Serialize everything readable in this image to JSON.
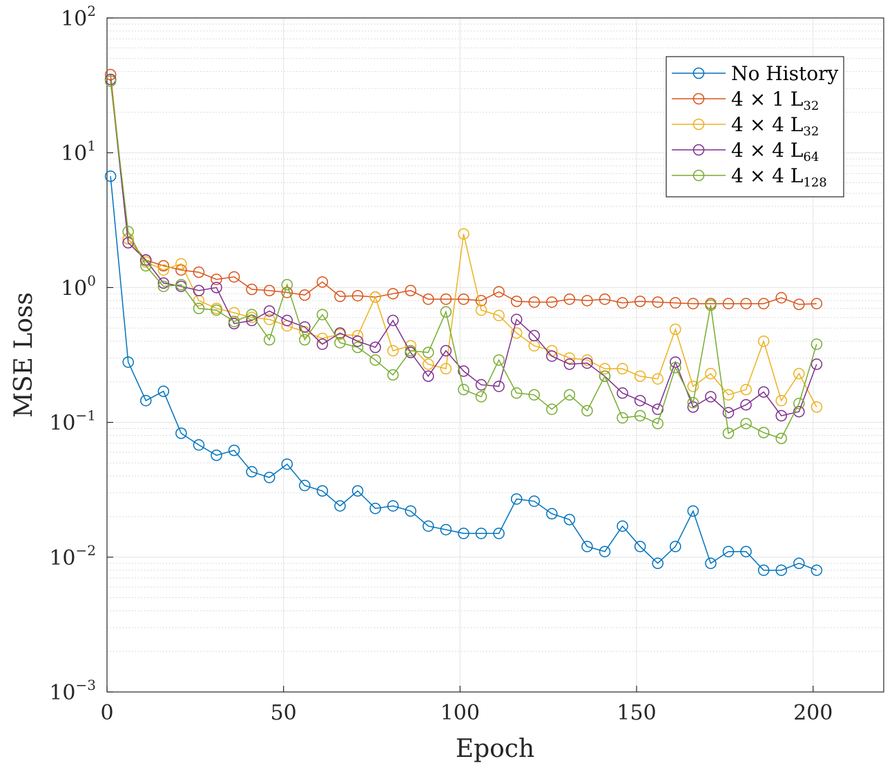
{
  "chart_data": {
    "type": "line",
    "xlabel": "Epoch",
    "ylabel": "MSE Loss",
    "yscale": "log",
    "xlim": [
      0,
      220
    ],
    "ylim": [
      0.001,
      100
    ],
    "grid": true,
    "legend_position": "top-right",
    "x_ticks": [
      0,
      50,
      100,
      150,
      200
    ],
    "y_ticks": [
      {
        "value": 0.001,
        "base": "10",
        "exp": "−3"
      },
      {
        "value": 0.01,
        "base": "10",
        "exp": "−2"
      },
      {
        "value": 0.1,
        "base": "10",
        "exp": "−1"
      },
      {
        "value": 1,
        "base": "10",
        "exp": "0"
      },
      {
        "value": 10,
        "base": "10",
        "exp": "1"
      },
      {
        "value": 100,
        "base": "10",
        "exp": "2"
      }
    ],
    "x": [
      1,
      6,
      11,
      16,
      21,
      26,
      31,
      36,
      41,
      46,
      51,
      56,
      61,
      66,
      71,
      76,
      81,
      86,
      91,
      96,
      101,
      106,
      111,
      116,
      121,
      126,
      131,
      136,
      141,
      146,
      151,
      156,
      161,
      166,
      171,
      176,
      181,
      186,
      191,
      196,
      201
    ],
    "series": [
      {
        "name": "No History",
        "legend_main": "No History",
        "legend_sub": "",
        "color": "#0072BD",
        "values": [
          6.7,
          0.28,
          0.145,
          0.17,
          0.083,
          0.068,
          0.057,
          0.062,
          0.043,
          0.039,
          0.049,
          0.034,
          0.031,
          0.024,
          0.031,
          0.023,
          0.024,
          0.022,
          0.017,
          0.016,
          0.015,
          0.015,
          0.015,
          0.027,
          0.026,
          0.021,
          0.019,
          0.012,
          0.011,
          0.017,
          0.012,
          0.009,
          0.012,
          0.022,
          0.009,
          0.011,
          0.011,
          0.008,
          0.008,
          0.009,
          0.008
        ]
      },
      {
        "name": "4 × 1 L32",
        "legend_main": "4 × 1 L",
        "legend_sub": "32",
        "color": "#D95319",
        "values": [
          38,
          2.3,
          1.6,
          1.45,
          1.35,
          1.3,
          1.15,
          1.2,
          0.97,
          0.95,
          0.92,
          0.88,
          1.1,
          0.86,
          0.87,
          0.85,
          0.9,
          0.95,
          0.82,
          0.82,
          0.82,
          0.8,
          0.93,
          0.79,
          0.78,
          0.78,
          0.82,
          0.8,
          0.82,
          0.77,
          0.79,
          0.78,
          0.77,
          0.76,
          0.76,
          0.76,
          0.76,
          0.76,
          0.84,
          0.75,
          0.76
        ]
      },
      {
        "name": "4 × 4 L32",
        "legend_main": "4 × 4 L",
        "legend_sub": "32",
        "color": "#EDB120",
        "values": [
          35,
          2.3,
          1.55,
          1.35,
          1.5,
          0.8,
          0.7,
          0.65,
          0.6,
          0.58,
          0.52,
          0.47,
          0.42,
          0.45,
          0.44,
          0.85,
          0.34,
          0.37,
          0.27,
          0.25,
          2.5,
          0.68,
          0.62,
          0.46,
          0.37,
          0.34,
          0.3,
          0.29,
          0.25,
          0.25,
          0.22,
          0.21,
          0.49,
          0.185,
          0.23,
          0.16,
          0.175,
          0.4,
          0.145,
          0.23,
          0.13
        ]
      },
      {
        "name": "4 × 4 L64",
        "legend_main": "4 × 4 L",
        "legend_sub": "64",
        "color": "#7E2F8E",
        "values": [
          35,
          2.15,
          1.6,
          1.08,
          1.02,
          0.95,
          1.0,
          0.54,
          0.57,
          0.67,
          0.57,
          0.51,
          0.38,
          0.46,
          0.4,
          0.36,
          0.57,
          0.33,
          0.22,
          0.34,
          0.24,
          0.19,
          0.185,
          0.58,
          0.44,
          0.31,
          0.27,
          0.275,
          0.22,
          0.165,
          0.145,
          0.125,
          0.28,
          0.13,
          0.155,
          0.118,
          0.135,
          0.168,
          0.112,
          0.12,
          0.27
        ]
      },
      {
        "name": "4 × 4 L128",
        "legend_main": "4 × 4 L",
        "legend_sub": "128",
        "color": "#77AC30",
        "values": [
          34,
          2.6,
          1.45,
          1.02,
          1.05,
          0.7,
          0.68,
          0.56,
          0.63,
          0.41,
          1.05,
          0.41,
          0.63,
          0.39,
          0.36,
          0.29,
          0.225,
          0.34,
          0.33,
          0.66,
          0.175,
          0.155,
          0.29,
          0.165,
          0.16,
          0.125,
          0.16,
          0.122,
          0.22,
          0.108,
          0.112,
          0.098,
          0.255,
          0.14,
          0.74,
          0.083,
          0.098,
          0.084,
          0.076,
          0.138,
          0.38
        ]
      }
    ]
  }
}
